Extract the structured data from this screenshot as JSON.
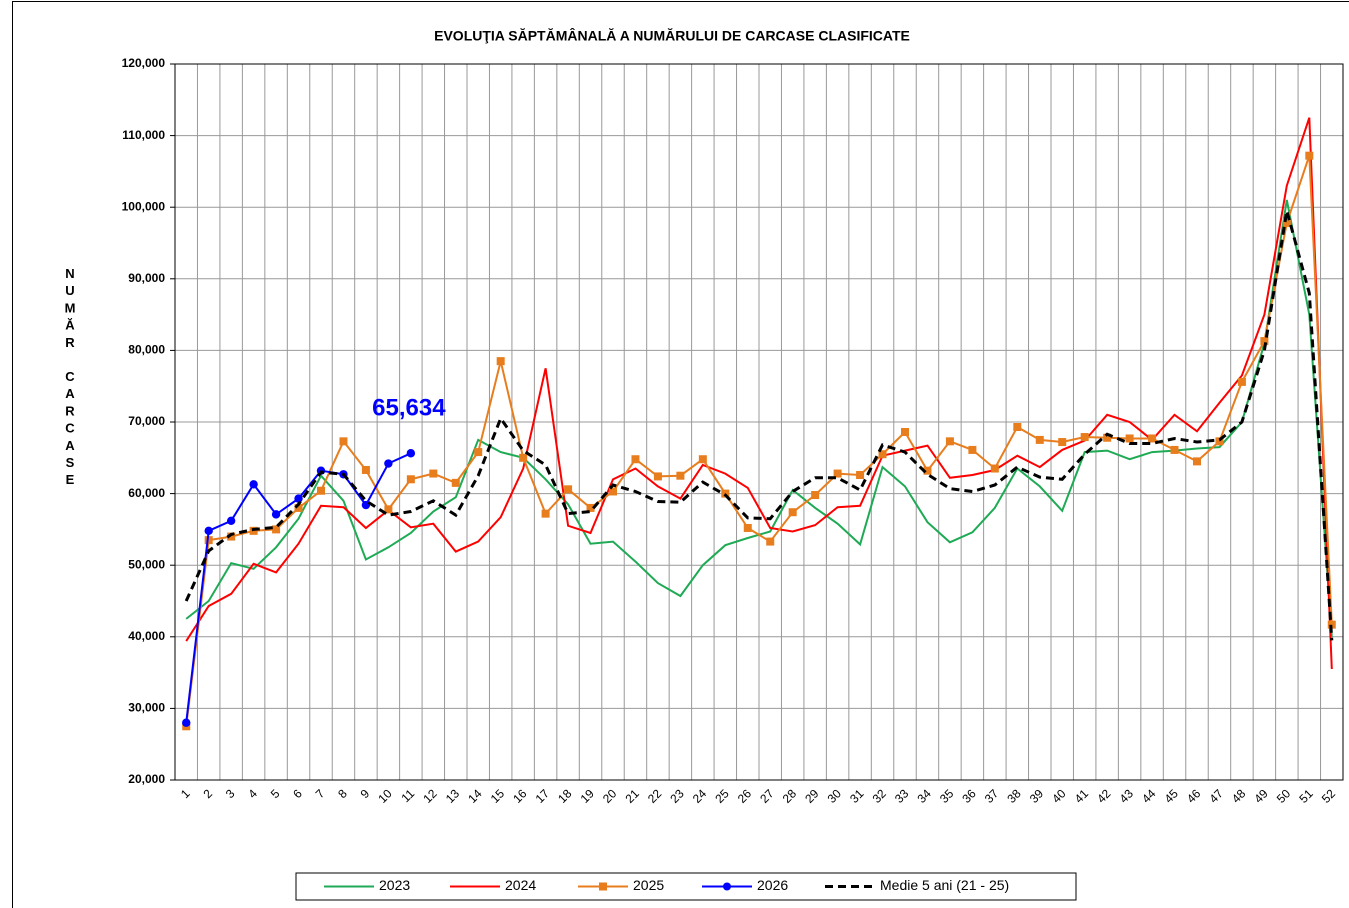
{
  "chart_data": {
    "type": "line",
    "title": "EVOLUŢIA  SĂPTĂMÂNALĂ  A NUMĂRULUI DE CARCASE   CLASIFICATE",
    "y_label": "NUMĂR CARCASE",
    "categories": [
      "1",
      "2",
      "3",
      "4",
      "5",
      "6",
      "7",
      "8",
      "9",
      "10",
      "11",
      "12",
      "13",
      "14",
      "15",
      "16",
      "17",
      "18",
      "19",
      "20",
      "21",
      "22",
      "23",
      "24",
      "25",
      "26",
      "27",
      "28",
      "29",
      "30",
      "31",
      "32",
      "33",
      "34",
      "35",
      "36",
      "37",
      "38",
      "39",
      "40",
      "41",
      "42",
      "43",
      "44",
      "45",
      "46",
      "47",
      "48",
      "49",
      "50",
      "51",
      "52"
    ],
    "ylim": [
      20000,
      120000
    ],
    "yticks": [
      {
        "value": 20000,
        "label": "20,000"
      },
      {
        "value": 30000,
        "label": "30,000"
      },
      {
        "value": 40000,
        "label": "40,000"
      },
      {
        "value": 50000,
        "label": "50,000"
      },
      {
        "value": 60000,
        "label": "60,000"
      },
      {
        "value": 70000,
        "label": "70,000"
      },
      {
        "value": 80000,
        "label": "80,000"
      },
      {
        "value": 90000,
        "label": "90,000"
      },
      {
        "value": 100000,
        "label": "100,000"
      },
      {
        "value": 110000,
        "label": "110,000"
      },
      {
        "value": 120000,
        "label": "120,000"
      }
    ],
    "grid": true,
    "legend": "bottom",
    "series": [
      {
        "name": "2023",
        "color": "#1faa55",
        "marker": "none",
        "dash": false,
        "values": [
          42500,
          45000,
          50300,
          49500,
          52500,
          56500,
          62500,
          59000,
          50800,
          52500,
          54500,
          57500,
          59500,
          67500,
          65800,
          65000,
          62000,
          58500,
          53000,
          53300,
          50500,
          47500,
          45700,
          50000,
          52800,
          53800,
          54700,
          60500,
          58000,
          55800,
          52900,
          63700,
          61000,
          56000,
          53200,
          54600,
          58000,
          63500,
          61000,
          57600,
          65800,
          66000,
          64800,
          65800,
          66000,
          66300,
          66500,
          70000,
          81000,
          101000,
          85000,
          40000
        ]
      },
      {
        "name": "2024",
        "color": "#ff0000",
        "marker": "none",
        "dash": false,
        "values": [
          39400,
          44300,
          46000,
          50200,
          49000,
          53000,
          58300,
          58100,
          55200,
          57700,
          55300,
          55800,
          51900,
          53300,
          56700,
          63500,
          77500,
          55500,
          54500,
          62000,
          63500,
          61000,
          59300,
          64000,
          62800,
          60800,
          55200,
          54700,
          55600,
          58100,
          58300,
          65300,
          66000,
          66700,
          62200,
          62600,
          63300,
          65300,
          63700,
          66100,
          67400,
          71000,
          70000,
          67500,
          71000,
          68700,
          72700,
          76500,
          85000,
          103000,
          112500,
          35500
        ]
      },
      {
        "name": "2025",
        "color": "#e87d1e",
        "marker": "square",
        "dash": false,
        "values": [
          27500,
          53500,
          54000,
          54800,
          55000,
          58000,
          60400,
          67300,
          63300,
          57800,
          62000,
          62800,
          61500,
          65800,
          78500,
          65000,
          57200,
          60600,
          58000,
          60300,
          64800,
          62400,
          62500,
          64800,
          60000,
          55200,
          53300,
          57400,
          59800,
          62800,
          62600,
          65500,
          68600,
          63200,
          67300,
          66100,
          63500,
          69300,
          67500,
          67200,
          67900,
          67800,
          67700,
          67700,
          66100,
          64500,
          67300,
          75600,
          81300,
          97800,
          107200,
          41700
        ]
      },
      {
        "name": "2026",
        "color": "#0000ff",
        "marker": "circle",
        "dash": false,
        "values": [
          28000,
          54800,
          56200,
          61300,
          57100,
          59300,
          63200,
          62700,
          58400,
          64200,
          65634,
          null,
          null,
          null,
          null,
          null,
          null,
          null,
          null,
          null,
          null,
          null,
          null,
          null,
          null,
          null,
          null,
          null,
          null,
          null,
          null,
          null,
          null,
          null,
          null,
          null,
          null,
          null,
          null,
          null,
          null,
          null,
          null,
          null,
          null,
          null,
          null,
          null,
          null,
          null,
          null,
          null
        ],
        "value_labels": [
          null,
          null,
          null,
          null,
          null,
          null,
          null,
          null,
          null,
          null,
          "65,634",
          null,
          null,
          null,
          null,
          null,
          null,
          null,
          null,
          null,
          null,
          null,
          null,
          null,
          null,
          null,
          null,
          null,
          null,
          null,
          null,
          null,
          null,
          null,
          null,
          null,
          null,
          null,
          null,
          null,
          null,
          null,
          null,
          null,
          null,
          null,
          null,
          null,
          null,
          null,
          null,
          null
        ]
      },
      {
        "name": "Medie 5 ani (21 - 25)",
        "color": "#000000",
        "marker": "none",
        "dash": true,
        "values": [
          45000,
          52000,
          54300,
          55000,
          55300,
          58500,
          63000,
          62700,
          59000,
          57000,
          57500,
          59000,
          57000,
          62500,
          70500,
          66000,
          64000,
          57200,
          57500,
          61200,
          60300,
          58900,
          58800,
          61600,
          59800,
          56600,
          56500,
          60300,
          62200,
          62200,
          60500,
          66800,
          65800,
          62700,
          60700,
          60300,
          61200,
          63700,
          62300,
          62000,
          65500,
          68300,
          67000,
          67000,
          67700,
          67200,
          67500,
          70000,
          80000,
          99500,
          88000,
          39500
        ]
      }
    ]
  }
}
